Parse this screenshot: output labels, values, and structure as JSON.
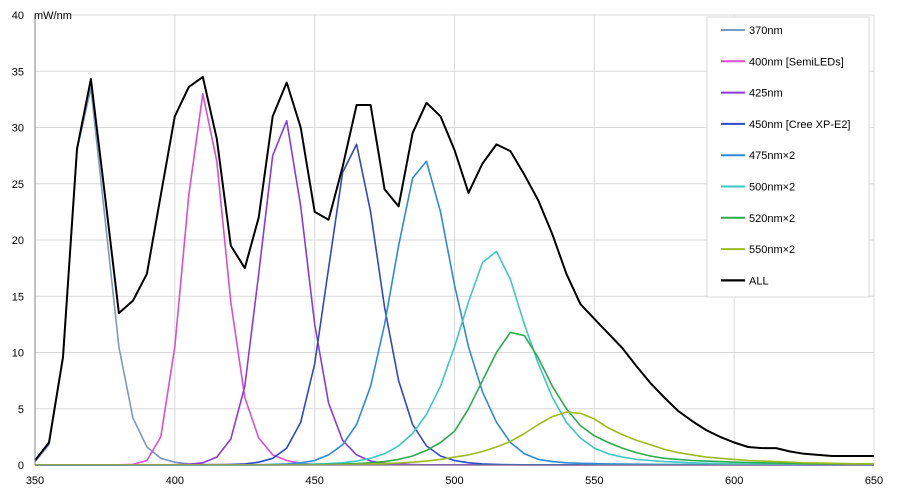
{
  "chart_data": {
    "type": "line",
    "title": "",
    "xlabel": "",
    "ylabel": "",
    "y_unit_label": "mW/nm",
    "xlim": [
      350,
      650
    ],
    "ylim": [
      0,
      40
    ],
    "x_ticks": [
      350,
      400,
      450,
      500,
      550,
      600,
      650
    ],
    "y_ticks": [
      0,
      5,
      10,
      15,
      20,
      25,
      30,
      35,
      40
    ],
    "grid": true,
    "legend_position": "right",
    "x_step": 5,
    "series": [
      {
        "name": "370nm",
        "color": "#7f98c0",
        "values": [
          0.3,
          1.8,
          9.5,
          28.0,
          33.5,
          22.0,
          10.5,
          4.2,
          1.6,
          0.6,
          0.25,
          0.1,
          0.05,
          0.03,
          0.02,
          0.02,
          0.02,
          0.02,
          0.02,
          0.02,
          0.02,
          0.02,
          0.02,
          0.02,
          0.02,
          0.02,
          0.02,
          0.02,
          0.02,
          0.02,
          0.02,
          0.02,
          0.02,
          0.02,
          0.02,
          0.02,
          0.02,
          0.02,
          0.02,
          0.02,
          0.02,
          0.02,
          0.02,
          0.02,
          0.02,
          0.02,
          0.02,
          0.02,
          0.02,
          0.02,
          0.02,
          0.02,
          0.02,
          0.02,
          0.02,
          0.02,
          0.02,
          0.02,
          0.02,
          0.02,
          0.02
        ]
      },
      {
        "name": "400nm [SemiLEDs]",
        "color": "#d84fd0",
        "values": [
          0.02,
          0.02,
          0.02,
          0.02,
          0.02,
          0.02,
          0.02,
          0.05,
          0.4,
          2.5,
          10.5,
          24.0,
          33.0,
          27.0,
          14.5,
          6.0,
          2.4,
          0.9,
          0.4,
          0.15,
          0.05,
          0.02,
          0.02,
          0.02,
          0.02,
          0.02,
          0.02,
          0.02,
          0.02,
          0.02,
          0.02,
          0.02,
          0.02,
          0.02,
          0.02,
          0.02,
          0.02,
          0.02,
          0.02,
          0.02,
          0.02,
          0.02,
          0.02,
          0.02,
          0.02,
          0.02,
          0.02,
          0.02,
          0.02,
          0.02,
          0.02,
          0.02,
          0.02,
          0.02,
          0.02,
          0.02,
          0.02,
          0.02,
          0.02,
          0.02,
          0.02
        ]
      },
      {
        "name": "425nm",
        "color": "#8b3ad8",
        "values": [
          0.02,
          0.02,
          0.02,
          0.02,
          0.02,
          0.02,
          0.02,
          0.02,
          0.02,
          0.02,
          0.03,
          0.06,
          0.2,
          0.7,
          2.3,
          7.0,
          17.0,
          27.5,
          30.6,
          23.0,
          12.5,
          5.5,
          2.2,
          0.9,
          0.35,
          0.15,
          0.08,
          0.04,
          0.02,
          0.02,
          0.02,
          0.02,
          0.02,
          0.02,
          0.02,
          0.02,
          0.02,
          0.02,
          0.02,
          0.02,
          0.02,
          0.02,
          0.02,
          0.02,
          0.02,
          0.02,
          0.02,
          0.02,
          0.02,
          0.02,
          0.02,
          0.02,
          0.02,
          0.02,
          0.02,
          0.02,
          0.02,
          0.02,
          0.02,
          0.02,
          0.02
        ]
      },
      {
        "name": "450nm [Cree XP-E2]",
        "color": "#2f48c4",
        "values": [
          0.02,
          0.02,
          0.02,
          0.02,
          0.02,
          0.02,
          0.02,
          0.02,
          0.02,
          0.02,
          0.02,
          0.02,
          0.02,
          0.03,
          0.05,
          0.1,
          0.25,
          0.6,
          1.5,
          3.8,
          9.0,
          17.5,
          26.0,
          28.5,
          22.5,
          14.0,
          7.5,
          3.6,
          1.7,
          0.8,
          0.4,
          0.2,
          0.1,
          0.05,
          0.03,
          0.02,
          0.02,
          0.02,
          0.02,
          0.02,
          0.02,
          0.02,
          0.02,
          0.02,
          0.02,
          0.02,
          0.02,
          0.02,
          0.02,
          0.02,
          0.02,
          0.02,
          0.02,
          0.02,
          0.02,
          0.02,
          0.02,
          0.02,
          0.02,
          0.02,
          0.02
        ]
      },
      {
        "name": "475nm×2",
        "color": "#2e8ad6",
        "values": [
          0.02,
          0.02,
          0.02,
          0.02,
          0.02,
          0.02,
          0.02,
          0.02,
          0.02,
          0.02,
          0.02,
          0.02,
          0.02,
          0.02,
          0.02,
          0.02,
          0.03,
          0.05,
          0.1,
          0.2,
          0.4,
          0.9,
          1.8,
          3.6,
          7.0,
          12.5,
          19.5,
          25.5,
          27.0,
          22.5,
          16.0,
          10.5,
          6.5,
          3.8,
          2.0,
          1.0,
          0.5,
          0.3,
          0.2,
          0.15,
          0.12,
          0.1,
          0.08,
          0.07,
          0.06,
          0.05,
          0.05,
          0.04,
          0.04,
          0.03,
          0.03,
          0.03,
          0.03,
          0.02,
          0.02,
          0.02,
          0.02,
          0.02,
          0.02,
          0.02,
          0.02
        ]
      },
      {
        "name": "500nm×2",
        "color": "#3fc7c2",
        "values": [
          0.02,
          0.02,
          0.02,
          0.02,
          0.02,
          0.02,
          0.02,
          0.02,
          0.02,
          0.02,
          0.02,
          0.02,
          0.02,
          0.02,
          0.02,
          0.02,
          0.02,
          0.02,
          0.03,
          0.05,
          0.08,
          0.12,
          0.2,
          0.35,
          0.6,
          1.0,
          1.7,
          2.8,
          4.5,
          7.0,
          10.5,
          14.5,
          18.0,
          19.0,
          16.5,
          12.5,
          9.0,
          6.0,
          3.8,
          2.4,
          1.5,
          1.0,
          0.7,
          0.5,
          0.4,
          0.3,
          0.25,
          0.2,
          0.15,
          0.12,
          0.1,
          0.1,
          0.1,
          0.08,
          0.08,
          0.06,
          0.06,
          0.05,
          0.05,
          0.05,
          0.05
        ]
      },
      {
        "name": "520nm×2",
        "color": "#2aab4e",
        "values": [
          0.02,
          0.02,
          0.02,
          0.02,
          0.02,
          0.02,
          0.02,
          0.02,
          0.02,
          0.02,
          0.02,
          0.02,
          0.02,
          0.02,
          0.02,
          0.02,
          0.02,
          0.02,
          0.02,
          0.02,
          0.03,
          0.05,
          0.08,
          0.12,
          0.2,
          0.3,
          0.5,
          0.8,
          1.3,
          2.0,
          3.0,
          5.0,
          7.5,
          10.0,
          11.8,
          11.5,
          9.5,
          7.0,
          5.0,
          3.5,
          2.6,
          2.0,
          1.5,
          1.1,
          0.8,
          0.6,
          0.5,
          0.4,
          0.35,
          0.3,
          0.25,
          0.22,
          0.2,
          0.18,
          0.16,
          0.14,
          0.12,
          0.11,
          0.1,
          0.1,
          0.1
        ]
      },
      {
        "name": "550nm×2",
        "color": "#9cbb1a",
        "values": [
          0.02,
          0.02,
          0.02,
          0.02,
          0.02,
          0.02,
          0.02,
          0.02,
          0.02,
          0.02,
          0.02,
          0.02,
          0.02,
          0.02,
          0.02,
          0.02,
          0.02,
          0.02,
          0.02,
          0.02,
          0.02,
          0.02,
          0.03,
          0.05,
          0.08,
          0.12,
          0.18,
          0.25,
          0.35,
          0.5,
          0.7,
          0.9,
          1.2,
          1.6,
          2.1,
          2.8,
          3.6,
          4.3,
          4.7,
          4.6,
          4.1,
          3.3,
          2.7,
          2.2,
          1.8,
          1.4,
          1.1,
          0.9,
          0.7,
          0.6,
          0.5,
          0.4,
          0.35,
          0.3,
          0.25,
          0.2,
          0.18,
          0.15,
          0.12,
          0.1,
          0.1
        ]
      },
      {
        "name": "ALL",
        "color": "#000000",
        "values": [
          0.4,
          2.0,
          9.6,
          28.1,
          34.3,
          24.0,
          13.5,
          14.6,
          17.0,
          24.0,
          31.0,
          33.6,
          34.5,
          29.0,
          19.5,
          17.5,
          22.0,
          31.0,
          34.0,
          30.0,
          22.5,
          21.8,
          26.5,
          32.0,
          32.0,
          24.5,
          23.0,
          29.5,
          32.2,
          31.0,
          28.0,
          24.2,
          26.8,
          28.5,
          27.9,
          25.8,
          23.5,
          20.5,
          17.0,
          14.3,
          13.0,
          11.7,
          10.4,
          8.8,
          7.3,
          6.0,
          4.8,
          3.9,
          3.1,
          2.5,
          2.0,
          1.6,
          1.5,
          1.5,
          1.2,
          1.0,
          0.9,
          0.8,
          0.8,
          0.8,
          0.8
        ]
      }
    ]
  }
}
